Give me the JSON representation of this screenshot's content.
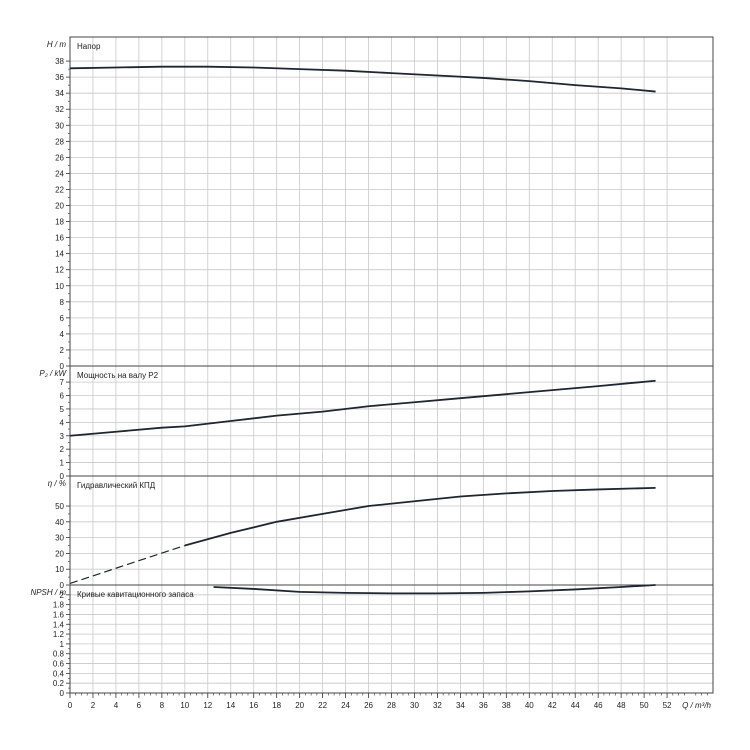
{
  "x_axis": {
    "label": "Q / m³/h",
    "range": [
      0,
      56
    ],
    "ticks": [
      0,
      2,
      4,
      6,
      8,
      10,
      12,
      14,
      16,
      18,
      20,
      22,
      24,
      26,
      28,
      30,
      32,
      34,
      36,
      38,
      40,
      42,
      44,
      46,
      48,
      50,
      52
    ]
  },
  "chart_data": [
    {
      "type": "line",
      "title": "Напор",
      "ylabel": "H / m",
      "ylim": [
        0,
        41
      ],
      "yticks": [
        0,
        2,
        4,
        6,
        8,
        10,
        12,
        14,
        16,
        18,
        20,
        22,
        24,
        26,
        28,
        30,
        32,
        34,
        36,
        38
      ],
      "grid": true,
      "series": [
        {
          "x": [
            0,
            4,
            8,
            12,
            16,
            20,
            24,
            28,
            32,
            36,
            40,
            44,
            48,
            51
          ],
          "y": [
            37.1,
            37.2,
            37.3,
            37.3,
            37.2,
            37.0,
            36.8,
            36.5,
            36.2,
            35.9,
            35.5,
            35.0,
            34.6,
            34.2
          ],
          "dashed_until": null
        }
      ]
    },
    {
      "type": "line",
      "title": "Мощность на валу P2",
      "ylabel": "P₂ / kW",
      "ylim": [
        0,
        8.2
      ],
      "yticks": [
        0,
        1,
        2,
        3,
        4,
        5,
        6,
        7
      ],
      "grid": true,
      "series": [
        {
          "x": [
            0,
            4,
            8,
            10,
            14,
            18,
            22,
            26,
            30,
            34,
            38,
            42,
            46,
            51
          ],
          "y": [
            3.0,
            3.3,
            3.6,
            3.7,
            4.1,
            4.5,
            4.8,
            5.2,
            5.5,
            5.8,
            6.1,
            6.4,
            6.7,
            7.1
          ],
          "dashed_until": null
        }
      ]
    },
    {
      "type": "line",
      "title": "Гидравлический КПД",
      "ylabel": "η / %",
      "ylim": [
        0,
        69
      ],
      "yticks": [
        0,
        10,
        20,
        30,
        40,
        50
      ],
      "grid": true,
      "series": [
        {
          "x": [
            0,
            5,
            10,
            14,
            18,
            22,
            26,
            30,
            34,
            38,
            42,
            46,
            51
          ],
          "y": [
            1,
            13,
            25,
            33,
            40,
            45,
            50,
            53,
            56,
            58,
            59.5,
            60.5,
            61.5
          ],
          "dashed_until": 10
        }
      ]
    },
    {
      "type": "line",
      "title": "Кривые кавитационного запаса",
      "ylabel": "NPSH / m",
      "ylim": [
        0,
        2.2
      ],
      "yticks": [
        0,
        0.2,
        0.4,
        0.6,
        0.8,
        1,
        1.2,
        1.4,
        1.6,
        1.8,
        2
      ],
      "ytick_labels": [
        "0",
        "0.2",
        "0.4",
        "0.6",
        "0.8",
        "1",
        "1.2",
        "1.4",
        "1.6",
        "1.8",
        "2"
      ],
      "grid": true,
      "series": [
        {
          "x": [
            12.5,
            16,
            20,
            24,
            28,
            32,
            36,
            40,
            44,
            48,
            51
          ],
          "y": [
            2.16,
            2.12,
            2.06,
            2.04,
            2.03,
            2.03,
            2.04,
            2.07,
            2.11,
            2.16,
            2.2
          ],
          "dashed_until": null
        }
      ]
    }
  ]
}
